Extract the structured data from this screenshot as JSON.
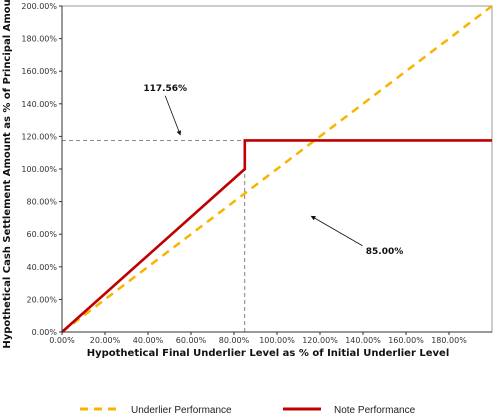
{
  "chart_data": {
    "type": "line",
    "title": "",
    "xlabel": "Hypothetical Final Underlier Level as % of Initial Underlier Level",
    "ylabel": "Hypothetical Cash Settlement Amount as % of Principal Amount",
    "xlim": [
      0,
      200
    ],
    "ylim": [
      0,
      200
    ],
    "x_ticks": [
      0,
      20,
      40,
      60,
      80,
      100,
      120,
      140,
      160,
      180
    ],
    "x_tick_labels": [
      "0.00%",
      "20.00%",
      "40.00%",
      "60.00%",
      "80.00%",
      "100.00%",
      "120.00%",
      "140.00%",
      "160.00%",
      "180.00%"
    ],
    "y_ticks": [
      0,
      20,
      40,
      60,
      80,
      100,
      120,
      140,
      160,
      180,
      200
    ],
    "y_tick_labels": [
      "0.00%",
      "20.00%",
      "40.00%",
      "60.00%",
      "80.00%",
      "100.00%",
      "120.00%",
      "140.00%",
      "160.00%",
      "180.00%",
      "200.00%"
    ],
    "grid": false,
    "legend_placement": "bottom",
    "series": [
      {
        "name": "Underlier Performance",
        "style": "dashed",
        "color": "#F7B500",
        "points": [
          [
            0,
            0
          ],
          [
            200,
            200
          ]
        ]
      },
      {
        "name": "Note Performance",
        "style": "solid",
        "color": "#C00000",
        "points": [
          [
            0,
            0
          ],
          [
            85,
            100
          ],
          [
            85,
            117.56
          ],
          [
            200,
            117.56
          ]
        ]
      }
    ],
    "reference_lines": [
      {
        "orientation": "horizontal",
        "value": 117.56,
        "from": 0,
        "to": 85
      },
      {
        "orientation": "vertical",
        "value": 85,
        "from": 0,
        "to": 117.56
      }
    ],
    "annotations": [
      {
        "text": "117.56%",
        "x": 48,
        "y": 148,
        "arrow_to": [
          55,
          121
        ]
      },
      {
        "text": "85.00%",
        "x": 150,
        "y": 48,
        "arrow_to": [
          116,
          71
        ]
      }
    ]
  }
}
